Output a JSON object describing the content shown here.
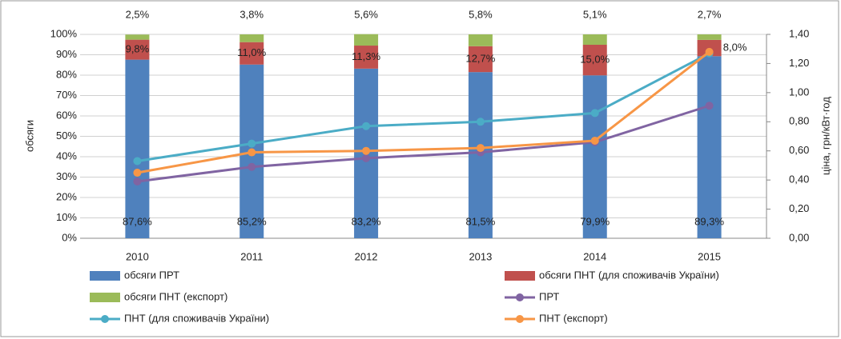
{
  "chart_data": {
    "type": "bar",
    "categories": [
      "2010",
      "2011",
      "2012",
      "2013",
      "2014",
      "2015"
    ],
    "y_label": "обсяги",
    "y2_label": "ціна, грн/кВт·год",
    "ylim": [
      0,
      100
    ],
    "yticks": [
      {
        "value": 0,
        "label": "0%"
      },
      {
        "value": 10,
        "label": "10%"
      },
      {
        "value": 20,
        "label": "20%"
      },
      {
        "value": 30,
        "label": "30%"
      },
      {
        "value": 40,
        "label": "40%"
      },
      {
        "value": 50,
        "label": "50%"
      },
      {
        "value": 60,
        "label": "60%"
      },
      {
        "value": 70,
        "label": "70%"
      },
      {
        "value": 80,
        "label": "80%"
      },
      {
        "value": 90,
        "label": "90%"
      },
      {
        "value": 100,
        "label": "100%"
      }
    ],
    "y2lim": [
      0,
      1.4
    ],
    "y2ticks": [
      {
        "value": 0,
        "label": "0,00"
      },
      {
        "value": 0.2,
        "label": "0,20"
      },
      {
        "value": 0.4,
        "label": "0,40"
      },
      {
        "value": 0.6,
        "label": "0,60"
      },
      {
        "value": 0.8,
        "label": "0,80"
      },
      {
        "value": 1.0,
        "label": "1,00"
      },
      {
        "value": 1.2,
        "label": "1,20"
      },
      {
        "value": 1.4,
        "label": "1,40"
      }
    ],
    "grid": true,
    "series": [
      {
        "name": "обсяги ПРТ",
        "type": "bar",
        "color": "#4f81bd",
        "values": [
          87.6,
          85.2,
          83.2,
          81.5,
          79.9,
          89.3
        ],
        "value_labels": [
          "87,6%",
          "85,2%",
          "83,2%",
          "81,5%",
          "79,9%",
          "89,3%"
        ]
      },
      {
        "name": "обсяги ПНТ (для споживачів України)",
        "type": "bar",
        "color": "#c0504d",
        "values": [
          9.8,
          11.0,
          11.3,
          12.7,
          15.0,
          8.0
        ],
        "value_labels": [
          "9,8%",
          "11,0%",
          "11,3%",
          "12,7%",
          "15,0%",
          "8,0%"
        ]
      },
      {
        "name": "обсяги ПНТ (експорт)",
        "type": "bar",
        "color": "#9bbb59",
        "values": [
          2.5,
          3.8,
          5.6,
          5.8,
          5.1,
          2.7
        ],
        "value_labels": [
          "2,5%",
          "3,8%",
          "5,6%",
          "5,8%",
          "5,1%",
          "2,7%"
        ]
      },
      {
        "name": "ПРТ",
        "type": "line",
        "axis": "y2",
        "color": "#8064a2",
        "values": [
          0.39,
          0.49,
          0.55,
          0.59,
          0.66,
          0.91
        ]
      },
      {
        "name": "ПНТ (для споживачів України)",
        "type": "line",
        "axis": "y2",
        "color": "#4bacc6",
        "values": [
          0.53,
          0.65,
          0.77,
          0.8,
          0.86,
          1.27
        ]
      },
      {
        "name": "ПНТ (експорт)",
        "type": "line",
        "axis": "y2",
        "color": "#f79646",
        "values": [
          0.45,
          0.59,
          0.6,
          0.62,
          0.67,
          1.28
        ]
      }
    ]
  }
}
